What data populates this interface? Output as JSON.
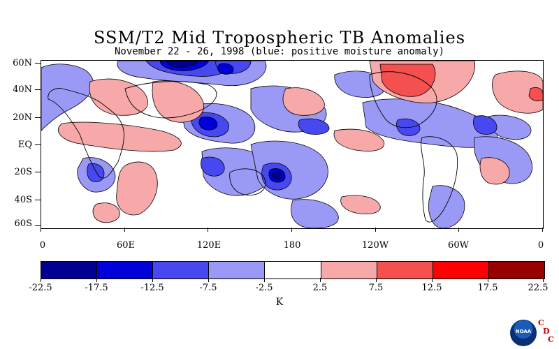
{
  "header": {
    "title": "SSM/T2 Mid Tropospheric TB Anomalies",
    "subtitle": "November 22 - 26, 1998 (blue: positive moisture anomaly)"
  },
  "map": {
    "lat_labels": [
      "60N",
      "40N",
      "20N",
      "EQ",
      "20S",
      "40S",
      "60S"
    ],
    "lon_labels": [
      "0",
      "60E",
      "120E",
      "180",
      "120W",
      "60W",
      "0"
    ]
  },
  "colorbar": {
    "levels": [
      "-22.5",
      "-17.5",
      "-12.5",
      "-7.5",
      "-2.5",
      "2.5",
      "7.5",
      "12.5",
      "17.5",
      "22.5"
    ],
    "colors": [
      "#000090",
      "#0000d8",
      "#4848f0",
      "#9a9af6",
      "#ffffff",
      "#f7a8a8",
      "#f45050",
      "#ff0000",
      "#980000"
    ],
    "unit": "K"
  },
  "logo": {
    "agency": "NOAA",
    "cdc": [
      "C",
      "D",
      "C"
    ]
  }
}
